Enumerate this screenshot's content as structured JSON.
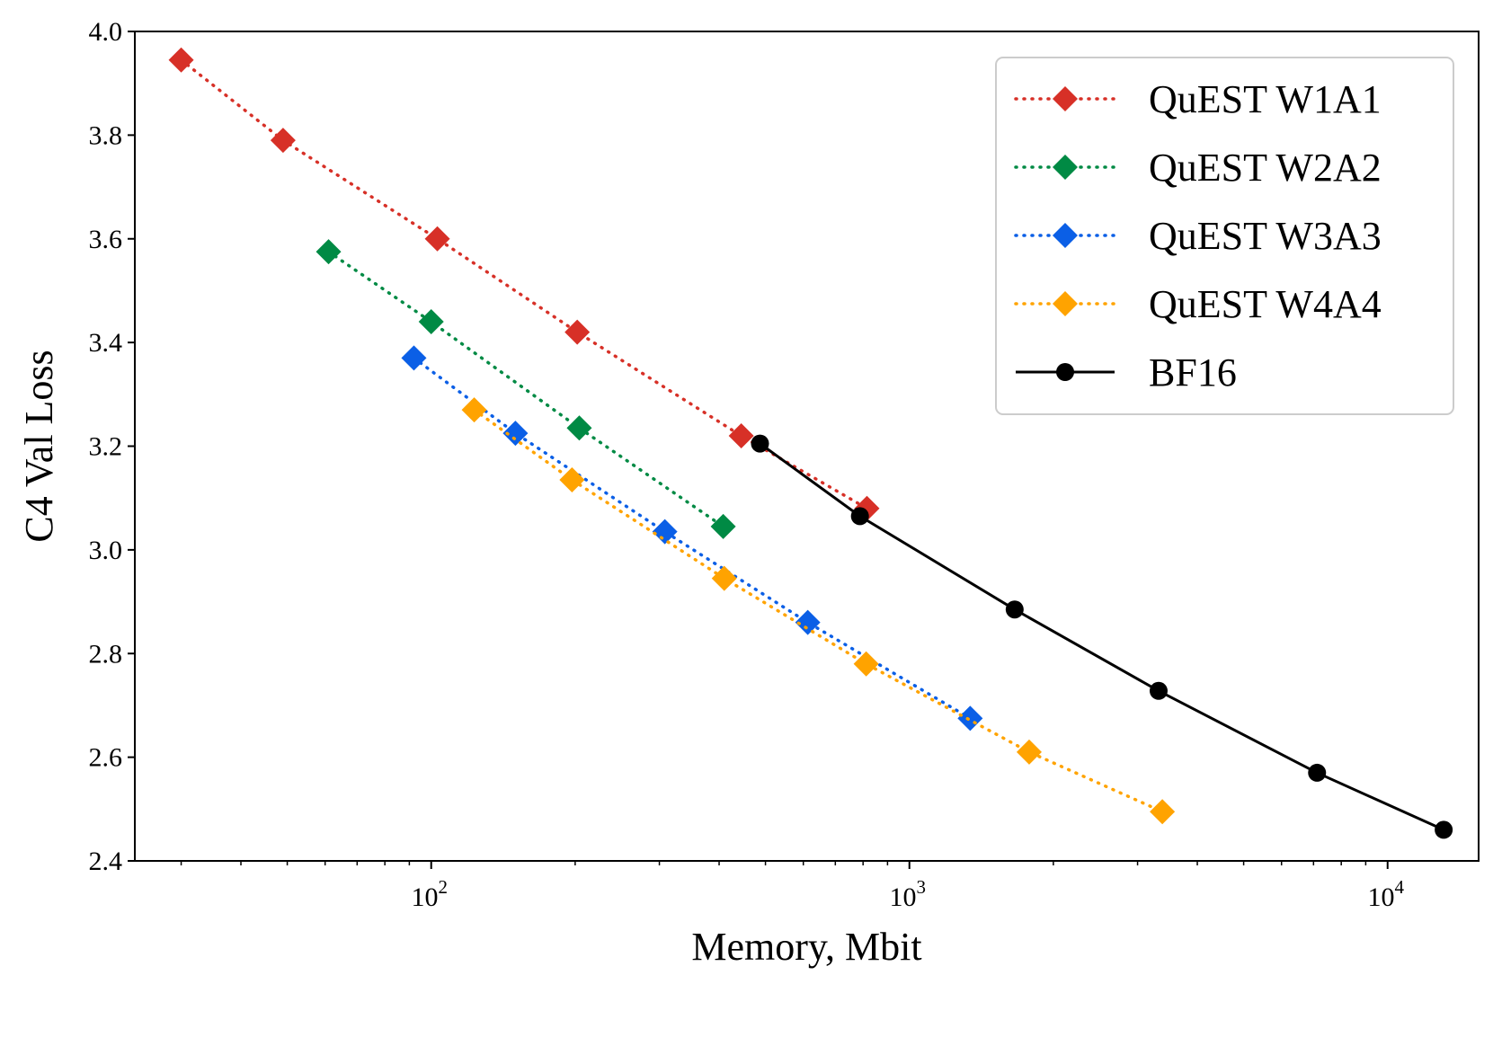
{
  "chart_data": {
    "type": "line",
    "title": "",
    "xlabel": "Memory, Mbit",
    "ylabel": "C4 Val Loss",
    "xscale": "log",
    "xlim": [
      24,
      15500
    ],
    "ylim": [
      2.4,
      4.0
    ],
    "x_ticks": [
      {
        "value": 100,
        "base": "10",
        "exp": "2"
      },
      {
        "value": 1000,
        "base": "10",
        "exp": "3"
      },
      {
        "value": 10000,
        "base": "10",
        "exp": "4"
      }
    ],
    "y_ticks": [
      "2.4",
      "2.6",
      "2.8",
      "3.0",
      "3.2",
      "3.4",
      "3.6",
      "3.8",
      "4.0"
    ],
    "grid": false,
    "legend": {
      "position": "top-right"
    },
    "series": [
      {
        "name": "QuEST W1A1",
        "color": "#d73027",
        "marker": "diamond",
        "linestyle": "dotted",
        "x": [
          30,
          49,
          103,
          202,
          445,
          815
        ],
        "y": [
          3.945,
          3.79,
          3.6,
          3.42,
          3.22,
          3.08
        ]
      },
      {
        "name": "QuEST W2A2",
        "color": "#008a44",
        "marker": "diamond",
        "linestyle": "dotted",
        "x": [
          61,
          100,
          204,
          408
        ],
        "y": [
          3.575,
          3.44,
          3.235,
          3.045
        ]
      },
      {
        "name": "QuEST W3A3",
        "color": "#0b5fe6",
        "marker": "diamond",
        "linestyle": "dotted",
        "x": [
          92,
          150,
          308,
          613,
          1340
        ],
        "y": [
          3.37,
          3.225,
          3.035,
          2.86,
          2.675
        ]
      },
      {
        "name": "QuEST W4A4",
        "color": "#ffa300",
        "marker": "diamond",
        "linestyle": "dotted",
        "x": [
          123,
          197,
          410,
          812,
          1780,
          3380
        ],
        "y": [
          3.27,
          3.135,
          2.945,
          2.78,
          2.61,
          2.495
        ]
      },
      {
        "name": "BF16",
        "color": "#000000",
        "marker": "circle",
        "linestyle": "solid",
        "x": [
          487,
          788,
          1660,
          3320,
          7120,
          13100
        ],
        "y": [
          3.205,
          3.065,
          2.885,
          2.728,
          2.57,
          2.46
        ]
      }
    ]
  }
}
